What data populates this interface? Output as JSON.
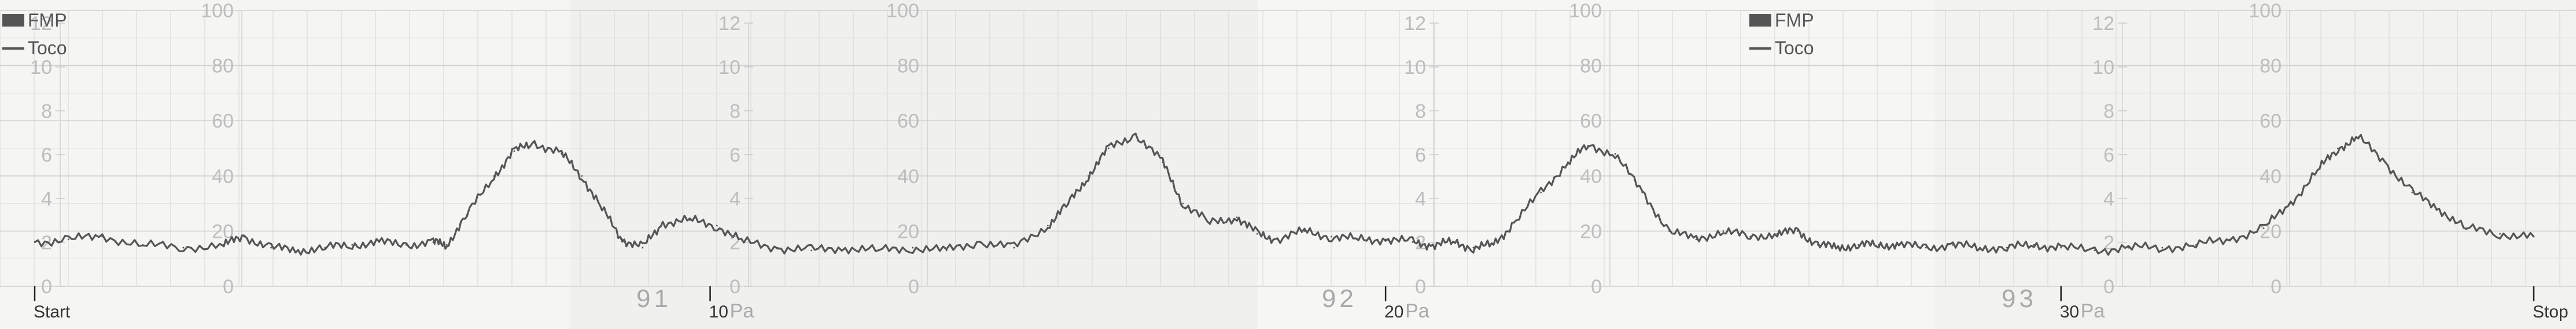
{
  "chart_data": {
    "type": "line",
    "series": [
      {
        "name": "Toco",
        "color": "#555555",
        "x": [
          0,
          0.5,
          1,
          1.6,
          2.2,
          2.8,
          3.1,
          3.5,
          3.9,
          4.3,
          4.7,
          5.1,
          5.5,
          5.9,
          6.1,
          6.4,
          6.8,
          7.1,
          7.4,
          7.8,
          8.1,
          8.4,
          8.7,
          9.0,
          9.3,
          9.7,
          10.1,
          10.5,
          11.0,
          11.5,
          12.0,
          12.5,
          13.0,
          13.5,
          14.0,
          14.5,
          15.0,
          15.3,
          15.6,
          15.9,
          16.3,
          16.7,
          17.0,
          17.4,
          17.8,
          18.1,
          18.4,
          18.8,
          19.2,
          19.6,
          20.0,
          20.4,
          20.7,
          21.0,
          21.3,
          21.6,
          21.9,
          22.3,
          22.7,
          23.0,
          23.4,
          23.8,
          24.2,
          24.6,
          25.0,
          25.4,
          25.8,
          26.1,
          26.4,
          26.7,
          27.0,
          27.3,
          27.6,
          28.0,
          28.4,
          28.8,
          29.2,
          29.6,
          30.0,
          30.5,
          31.0,
          31.5,
          32.0,
          32.5,
          33.0,
          33.4,
          33.8,
          34.1,
          34.4,
          34.8,
          35.2,
          35.6,
          36.0,
          36.5,
          37.0
        ],
        "y": [
          16,
          17,
          18,
          15,
          14,
          15,
          18,
          14,
          13,
          14,
          15,
          16,
          15,
          16,
          15,
          26,
          40,
          49,
          52,
          48,
          40,
          28,
          17,
          14,
          23,
          24,
          22,
          16,
          14,
          13,
          14,
          13,
          14,
          13,
          16,
          14,
          22,
          30,
          40,
          50,
          55,
          45,
          30,
          23,
          25,
          19,
          17,
          20,
          18,
          17,
          17,
          16,
          15,
          16,
          14,
          15,
          23,
          34,
          45,
          51,
          48,
          34,
          20,
          17,
          20,
          18,
          19,
          20,
          15,
          14,
          15,
          15,
          15,
          14,
          15,
          14,
          14,
          15,
          14,
          13,
          14,
          14,
          15,
          17,
          21,
          30,
          42,
          50,
          54,
          45,
          34,
          28,
          21,
          19,
          18
        ]
      }
    ],
    "yticks_toco": [
      0,
      20,
      40,
      60,
      80,
      100
    ],
    "yticks_fmp": [
      0,
      2,
      4,
      6,
      8,
      10,
      12
    ],
    "xticks": [
      {
        "x": 0,
        "label": "Start"
      },
      {
        "x": 10,
        "label": "10"
      },
      {
        "x": 20,
        "label": "20"
      },
      {
        "x": 30,
        "label": "30"
      },
      {
        "x": 37,
        "label": "Stop"
      }
    ],
    "xlim": [
      0,
      37
    ],
    "ylim": [
      0,
      100
    ],
    "unit": "Pa",
    "page_numbers": [
      "91",
      "92",
      "93"
    ],
    "legend": [
      {
        "label": "FMP",
        "swatch": "box"
      },
      {
        "label": "Toco",
        "swatch": "line"
      }
    ],
    "grid": true
  }
}
